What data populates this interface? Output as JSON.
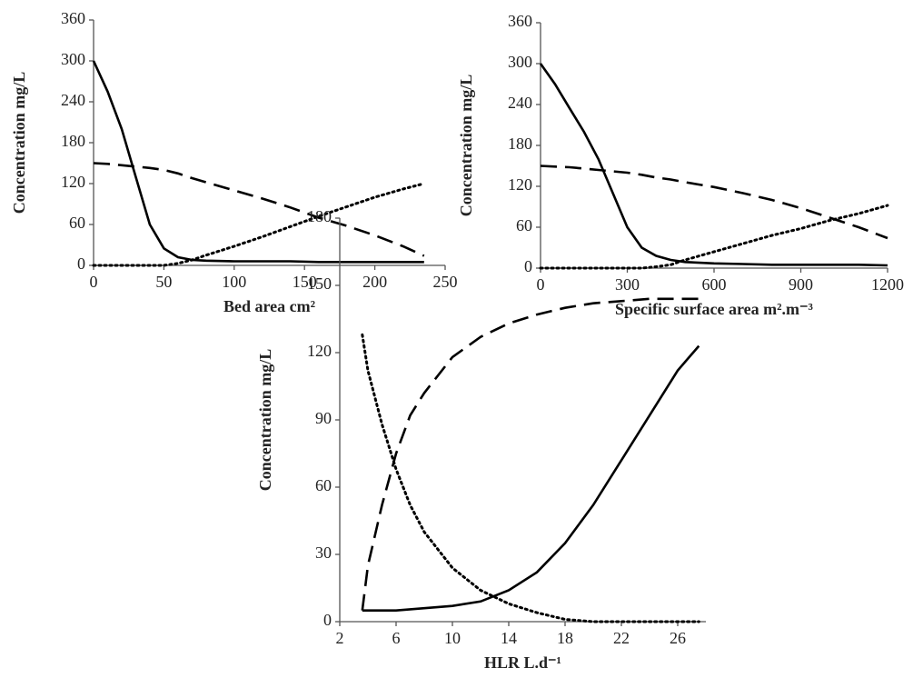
{
  "chart_data": [
    {
      "type": "line",
      "xlabel": "Bed area  cm²",
      "ylabel": "Concentration  mg/L",
      "xlim": [
        0,
        250
      ],
      "xticks": [
        0,
        50,
        100,
        150,
        200,
        250
      ],
      "ylim": [
        0,
        360
      ],
      "yticks": [
        0,
        60,
        120,
        180,
        240,
        300,
        360
      ],
      "x": [
        0,
        10,
        20,
        30,
        40,
        50,
        60,
        70,
        80,
        100,
        120,
        140,
        160,
        180,
        200,
        220,
        235
      ],
      "series": [
        {
          "color": "#000000",
          "dash": "solid",
          "values": [
            300,
            255,
            200,
            130,
            60,
            25,
            12,
            8,
            7,
            6,
            6,
            6,
            5,
            5,
            5,
            5,
            5
          ]
        },
        {
          "color": "#000000",
          "dash": "dashed",
          "values": [
            150,
            149,
            147,
            145,
            143,
            140,
            135,
            128,
            122,
            110,
            98,
            85,
            70,
            58,
            44,
            28,
            14
          ]
        },
        {
          "color": "#000000",
          "dash": "dotted",
          "values": [
            0,
            0,
            0,
            0,
            0,
            0,
            3,
            8,
            15,
            28,
            42,
            57,
            72,
            86,
            100,
            112,
            120
          ]
        }
      ]
    },
    {
      "type": "line",
      "xlabel": "Specific surface area  m².m⁻³",
      "ylabel": "Concentration  mg/L",
      "xlim": [
        0,
        1200
      ],
      "xticks": [
        0,
        300,
        600,
        900,
        1200
      ],
      "ylim": [
        0,
        360
      ],
      "yticks": [
        0,
        60,
        120,
        180,
        240,
        300,
        360
      ],
      "x": [
        0,
        50,
        100,
        150,
        200,
        250,
        300,
        350,
        400,
        450,
        500,
        600,
        700,
        800,
        900,
        1000,
        1100,
        1200
      ],
      "series": [
        {
          "color": "#000000",
          "dash": "solid",
          "values": [
            300,
            270,
            235,
            200,
            160,
            110,
            60,
            30,
            18,
            12,
            9,
            7,
            6,
            5,
            5,
            5,
            5,
            4
          ]
        },
        {
          "color": "#000000",
          "dash": "dashed",
          "values": [
            150,
            149,
            148,
            146,
            144,
            142,
            140,
            137,
            133,
            130,
            126,
            119,
            110,
            100,
            88,
            74,
            60,
            44
          ]
        },
        {
          "color": "#000000",
          "dash": "dotted",
          "values": [
            0,
            0,
            0,
            0,
            0,
            0,
            0,
            0,
            2,
            5,
            12,
            24,
            36,
            48,
            58,
            70,
            80,
            92
          ]
        }
      ]
    },
    {
      "type": "line",
      "xlabel": "HLR  L.d⁻¹",
      "ylabel": "Concentration  mg/L",
      "xlim": [
        2,
        28
      ],
      "xticks": [
        2,
        6,
        10,
        14,
        18,
        22,
        26
      ],
      "ylim": [
        0,
        180
      ],
      "yticks": [
        0,
        30,
        60,
        90,
        120,
        150,
        180
      ],
      "x": [
        3.6,
        4,
        5,
        6,
        7,
        8,
        10,
        12,
        14,
        16,
        18,
        20,
        22,
        24,
        26,
        27.5
      ],
      "series": [
        {
          "color": "#000000",
          "dash": "solid",
          "values": [
            5,
            5,
            5,
            5,
            5.5,
            6,
            7,
            9,
            14,
            22,
            35,
            52,
            72,
            92,
            112,
            123
          ]
        },
        {
          "color": "#000000",
          "dash": "dashed",
          "values": [
            5,
            25,
            52,
            75,
            92,
            102,
            118,
            127,
            133,
            137,
            140,
            142,
            143,
            144,
            144,
            144
          ]
        },
        {
          "color": "#000000",
          "dash": "dotted",
          "values": [
            128,
            112,
            88,
            68,
            52,
            40,
            24,
            14,
            8,
            4,
            1,
            0,
            0,
            0,
            0,
            0
          ]
        }
      ]
    }
  ]
}
